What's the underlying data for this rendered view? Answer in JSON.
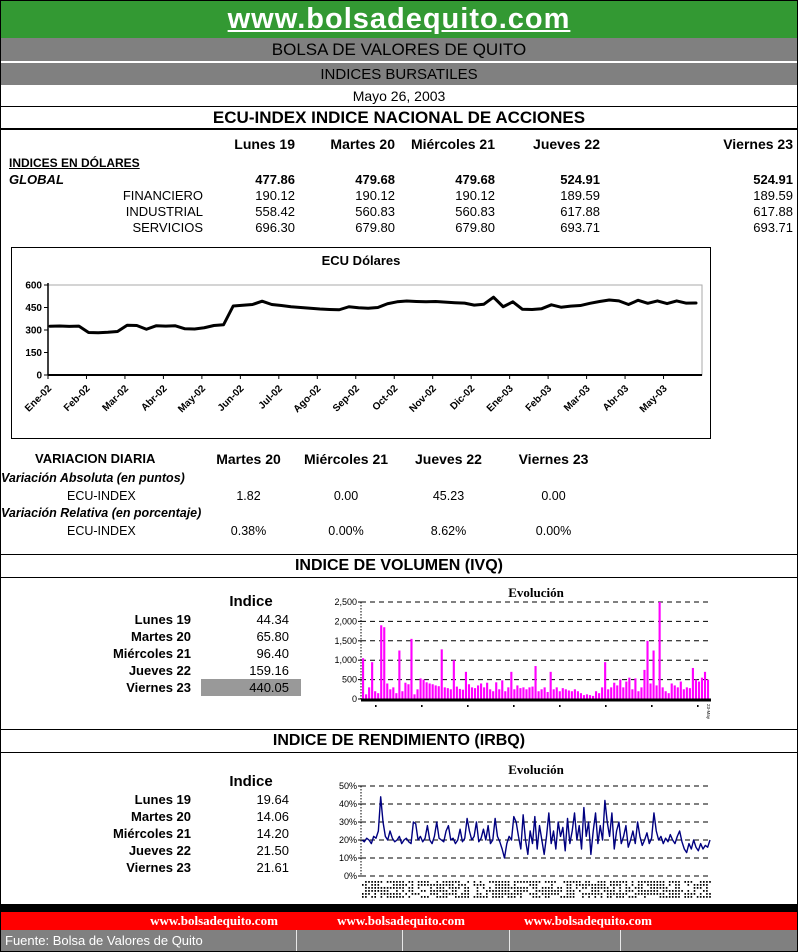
{
  "banner": {
    "url": "www.bolsadequito.com"
  },
  "masthead": {
    "exchange": "BOLSA DE VALORES DE QUITO",
    "report": "INDICES BURSATILES",
    "date": "Mayo 26, 2003"
  },
  "ecu_index_section": {
    "title": "ECU-INDEX  INDICE NACIONAL DE ACCIONES",
    "day_headers": [
      "Lunes 19",
      "Martes 20",
      "Miércoles 21",
      "Jueves 22",
      "Viernes 23"
    ],
    "group_label": "INDICES EN DÓLARES",
    "rows": [
      {
        "label": "GLOBAL",
        "values": [
          "477.86",
          "479.68",
          "479.68",
          "524.91",
          "524.91"
        ]
      },
      {
        "label": "FINANCIERO",
        "values": [
          "190.12",
          "190.12",
          "190.12",
          "189.59",
          "189.59"
        ]
      },
      {
        "label": "INDUSTRIAL",
        "values": [
          "558.42",
          "560.83",
          "560.83",
          "617.88",
          "617.88"
        ]
      },
      {
        "label": "SERVICIOS",
        "values": [
          "696.30",
          "679.80",
          "679.80",
          "693.71",
          "693.71"
        ]
      }
    ]
  },
  "variacion": {
    "title": "VARIACION DIARIA",
    "day_headers": [
      "Martes 20",
      "Miércoles 21",
      "Jueves 22",
      "Viernes 23"
    ],
    "abs_label": "Variación Absoluta (en puntos)",
    "abs_row_label": "ECU-INDEX",
    "abs_values": [
      "1.82",
      "0.00",
      "45.23",
      "0.00"
    ],
    "rel_label": "Variación Relativa (en porcentaje)",
    "rel_row_label": "ECU-INDEX",
    "rel_values": [
      "0.38%",
      "0.00%",
      "8.62%",
      "0.00%"
    ]
  },
  "ivq": {
    "title": "INDICE DE VOLUMEN (IVQ)",
    "col_header": "Indice",
    "rows": [
      {
        "label": "Lunes 19",
        "value": "44.34"
      },
      {
        "label": "Martes 20",
        "value": "65.80"
      },
      {
        "label": "Miércoles 21",
        "value": "96.40"
      },
      {
        "label": "Jueves 22",
        "value": "159.16"
      },
      {
        "label": "Viernes 23",
        "value": "440.05"
      }
    ],
    "highlighted_row": "Viernes 23"
  },
  "irbq": {
    "title": "INDICE DE RENDIMIENTO (IRBQ)",
    "col_header": "Indice",
    "rows": [
      {
        "label": "Lunes 19",
        "value": "19.64"
      },
      {
        "label": "Martes 20",
        "value": "14.06"
      },
      {
        "label": "Miércoles 21",
        "value": "14.20"
      },
      {
        "label": "Jueves 22",
        "value": "21.50"
      },
      {
        "label": "Viernes 23",
        "value": "21.61"
      }
    ]
  },
  "footer": {
    "links": [
      "www.bolsadequito.com",
      "www.bolsadequito.com",
      "www.bolsadequito.com"
    ],
    "source": "Fuente: Bolsa de Valores de Quito"
  },
  "colors": {
    "banner_green": "#339933",
    "bar_gray": "#808080",
    "footer_red": "#FF0000",
    "volume_magenta": "#FF00FF",
    "yield_navy": "#000080",
    "highlight_gray": "#999999",
    "ecu_line": "#000000"
  },
  "chart_data": [
    {
      "type": "line",
      "title": "ECU Dólares",
      "xlabel": "",
      "ylabel": "",
      "ylim": [
        0,
        600
      ],
      "yticks": [
        0,
        150,
        300,
        450,
        600
      ],
      "x_tick_labels": [
        "Ene-02",
        "Feb-02",
        "Mar-02",
        "Abr-02",
        "May-02",
        "Jun-02",
        "Jul-02",
        "Ago-02",
        "Sep-02",
        "Oct-02",
        "Nov-02",
        "Dic-02",
        "Ene-03",
        "Feb-03",
        "Mar-03",
        "Abr-03",
        "May-03"
      ],
      "grid": "off",
      "legend": "none",
      "series": [
        {
          "name": "ECU Dólares",
          "values": [
            325,
            327,
            324,
            326,
            283,
            282,
            285,
            290,
            332,
            330,
            305,
            328,
            326,
            328,
            308,
            307,
            315,
            330,
            335,
            460,
            465,
            470,
            492,
            470,
            463,
            455,
            450,
            445,
            440,
            437,
            435,
            455,
            448,
            445,
            450,
            475,
            488,
            493,
            490,
            488,
            490,
            486,
            482,
            479,
            466,
            472,
            519,
            455,
            488,
            438,
            437,
            442,
            468,
            452,
            459,
            463,
            478,
            490,
            500,
            494,
            470,
            498,
            478,
            494,
            476,
            494,
            479,
            480
          ]
        }
      ]
    },
    {
      "type": "bar",
      "title": "Evolución",
      "xlabel": "",
      "ylabel": "",
      "ylim": [
        0,
        2500
      ],
      "ytick_labels": [
        "0",
        "500",
        "1,000",
        "1,500",
        "2,000",
        "2,500"
      ],
      "grid": "dashed-horizontal",
      "legend": "none",
      "last_x_label": "23-May",
      "values": [
        1050,
        120,
        300,
        950,
        200,
        150,
        1900,
        1850,
        400,
        250,
        300,
        150,
        1250,
        200,
        420,
        380,
        1550,
        120,
        250,
        530,
        500,
        430,
        400,
        380,
        350,
        330,
        1280,
        300,
        280,
        250,
        1000,
        320,
        260,
        240,
        700,
        380,
        300,
        280,
        350,
        400,
        300,
        420,
        250,
        200,
        430,
        250,
        480,
        200,
        300,
        700,
        250,
        350,
        280,
        300,
        250,
        300,
        320,
        850,
        200,
        250,
        300,
        180,
        700,
        250,
        300,
        200,
        280,
        250,
        220,
        200,
        250,
        200,
        150,
        100,
        120,
        100,
        80,
        200,
        150,
        300,
        950,
        250,
        300,
        420,
        350,
        500,
        300,
        450,
        550,
        250,
        530,
        200,
        300,
        750,
        1500,
        400,
        1250,
        350,
        2500,
        300,
        200,
        150,
        400,
        350,
        300,
        450,
        250,
        300,
        280,
        800,
        500,
        450,
        550,
        700,
        500
      ]
    },
    {
      "type": "line",
      "title": "Evolución",
      "xlabel": "",
      "ylabel": "",
      "ylim": [
        0,
        50
      ],
      "ytick_labels": [
        "0%",
        "10%",
        "20%",
        "30%",
        "40%",
        "50%"
      ],
      "grid": "dashed-horizontal",
      "legend": "none",
      "values": [
        20,
        19,
        21,
        20,
        18,
        22,
        21,
        25,
        44,
        30,
        22,
        20,
        25,
        21,
        19,
        20,
        22,
        18,
        20,
        21,
        19,
        18,
        30,
        29,
        20,
        22,
        19,
        21,
        28,
        20,
        18,
        22,
        30,
        21,
        20,
        19,
        25,
        28,
        20,
        21,
        18,
        20,
        26,
        19,
        21,
        32,
        25,
        20,
        22,
        30,
        19,
        21,
        26,
        20,
        28,
        18,
        20,
        32,
        22,
        19,
        15,
        10,
        18,
        22,
        20,
        33,
        30,
        22,
        15,
        34,
        20,
        12,
        25,
        18,
        33,
        15,
        28,
        20,
        12,
        22,
        35,
        18,
        25,
        15,
        30,
        22,
        27,
        14,
        32,
        18,
        25,
        35,
        20,
        28,
        15,
        38,
        22,
        30,
        12,
        25,
        35,
        18,
        28,
        20,
        42,
        30,
        22,
        35,
        15,
        25,
        30,
        18,
        22,
        28,
        16,
        20,
        25,
        18,
        30,
        22,
        17,
        20,
        24,
        18,
        21,
        35,
        25,
        20,
        22,
        18,
        21,
        19,
        23,
        20,
        18,
        22,
        25,
        19,
        15,
        13,
        18,
        15,
        20,
        16,
        14,
        18,
        15,
        17,
        16,
        20
      ]
    }
  ]
}
